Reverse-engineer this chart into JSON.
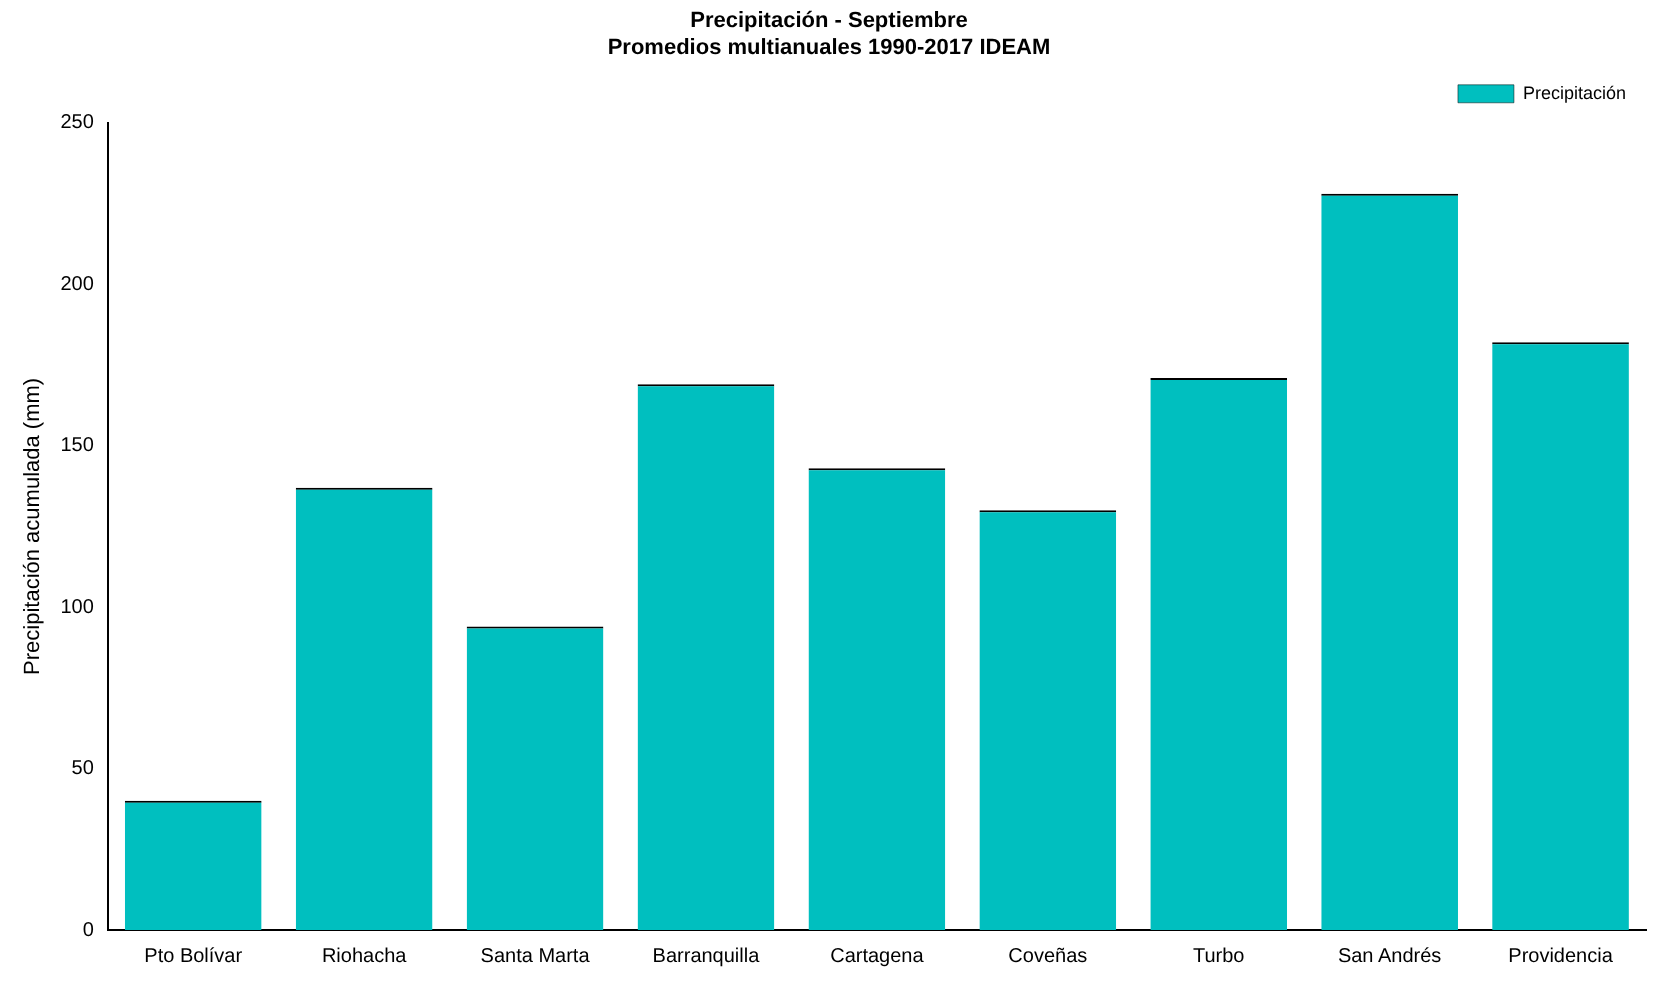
{
  "chart_data": {
    "type": "bar",
    "title": "Precipitación - Septiembre",
    "subtitle": "Promedios multianuales 1990-2017 IDEAM",
    "ylabel": "Precipitación acumulada (mm)",
    "categories": [
      "Pto Bolívar",
      "Riohacha",
      "Santa Marta",
      "Barranquilla",
      "Cartagena",
      "Coveñas",
      "Turbo",
      "San Andrés",
      "Providencia"
    ],
    "series": [
      {
        "name": "Precipitación",
        "color": "#00bfbf",
        "values": [
          40,
          137,
          94,
          169,
          143,
          130,
          171,
          228,
          182
        ]
      }
    ],
    "ylim": [
      0,
      250
    ],
    "yticks": [
      0,
      50,
      100,
      150,
      200,
      250
    ],
    "grid": false,
    "legend": "top right"
  }
}
